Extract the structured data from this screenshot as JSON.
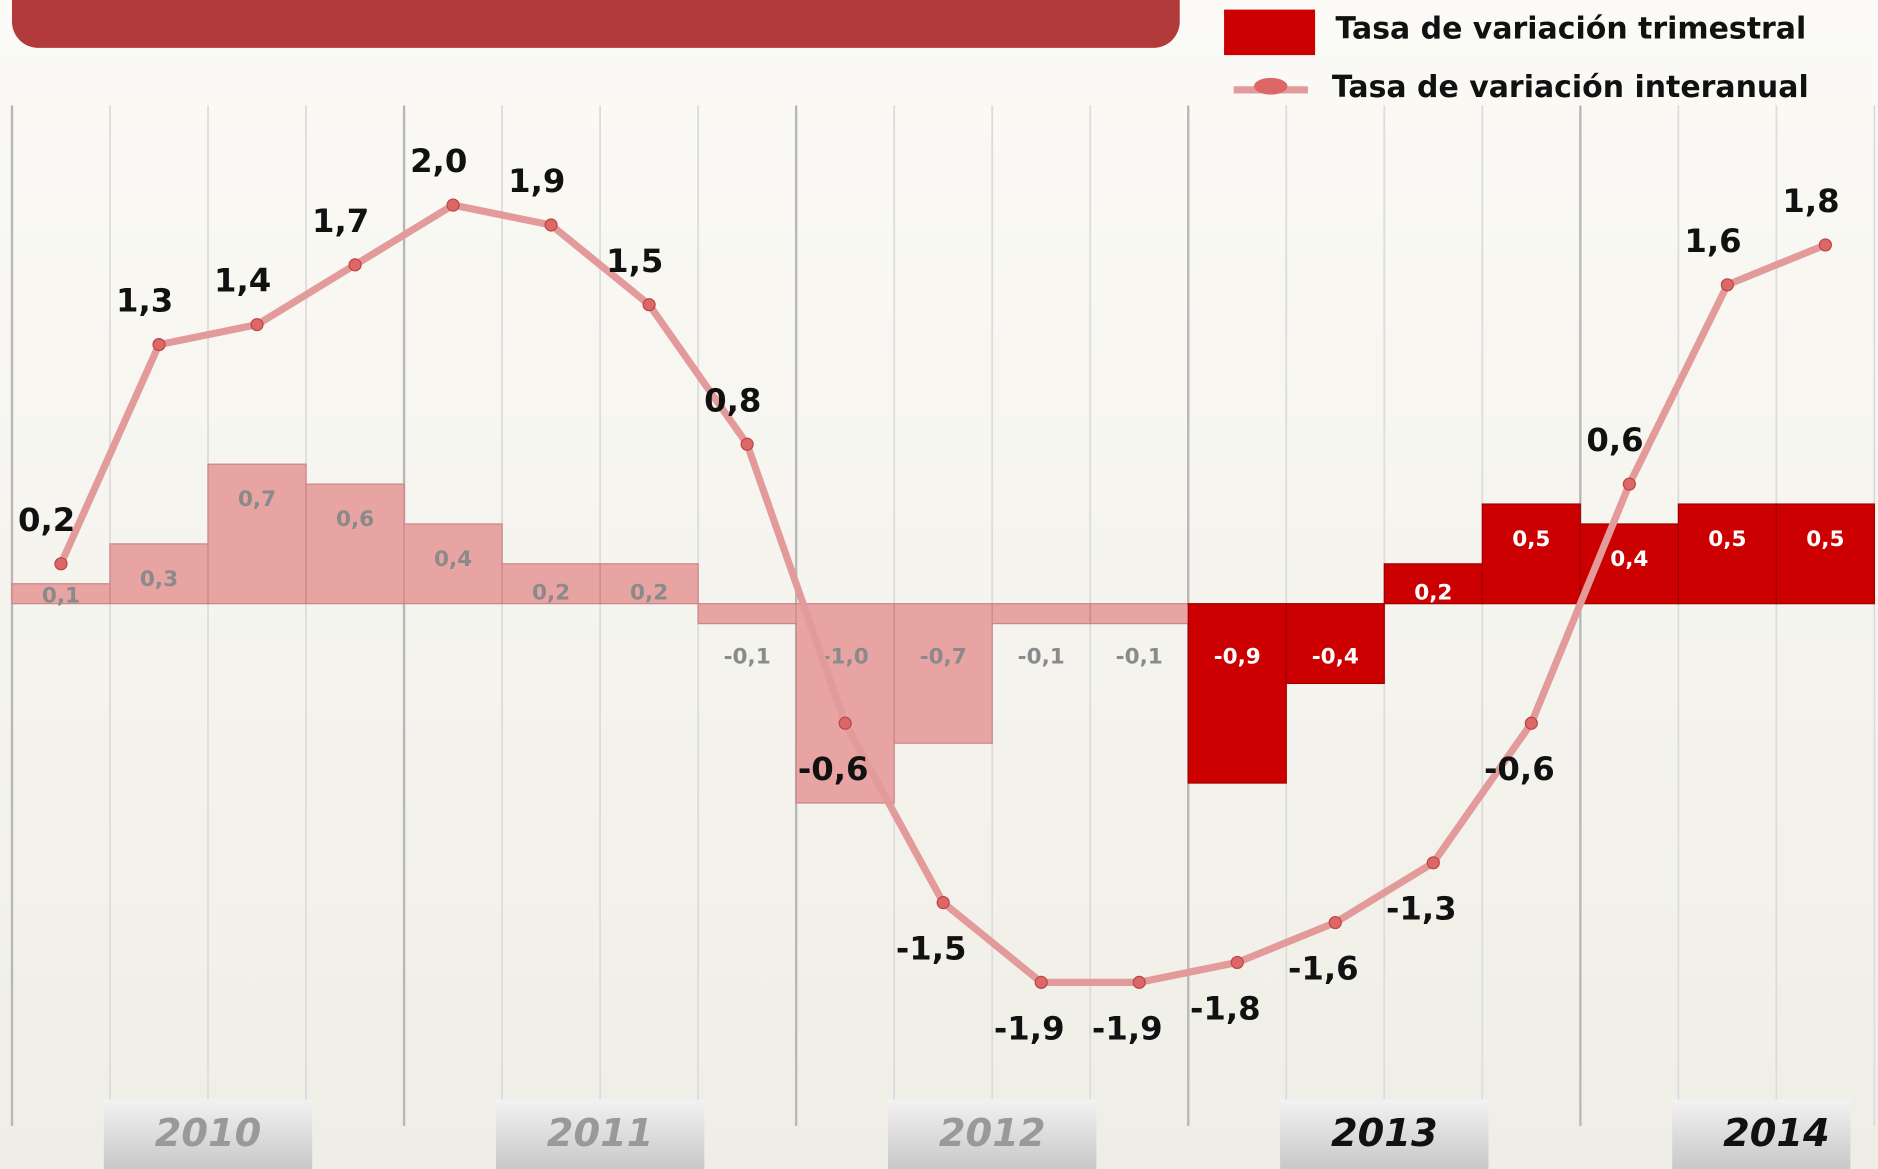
{
  "chart_data": {
    "type": "bar-line",
    "series": [
      {
        "name": "Tasa de variación trimestral",
        "type": "bar",
        "color": "#cc0000",
        "colors": [
          "#e8a3a3",
          "#e8a3a3",
          "#e8a3a3",
          "#e8a3a3",
          "#e8a3a3",
          "#e8a3a3",
          "#e8a3a3",
          "#e8a3a3",
          "#e8a3a3",
          "#e8a3a3",
          "#e8a3a3",
          "#e8a3a3",
          "#cc0000",
          "#cc0000",
          "#cc0000",
          "#cc0000",
          "#cc0000",
          "#cc0000",
          "#cc0000"
        ],
        "values": [
          0.1,
          0.3,
          0.7,
          0.6,
          0.4,
          0.2,
          0.2,
          -0.1,
          -1.0,
          -0.7,
          -0.1,
          -0.1,
          -0.9,
          -0.4,
          0.2,
          0.5,
          0.4,
          0.5,
          0.5
        ],
        "value_labels": [
          "0,1",
          "0,3",
          "0,7",
          "0,6",
          "0,4",
          "0,2",
          "0,2",
          "-0,1",
          "-1,0",
          "-0,7",
          "-0,1",
          "-0,1",
          "-0,9",
          "-0,4",
          "0,2",
          "0,5",
          "0,4",
          "0,5",
          "0,5"
        ]
      },
      {
        "name": "Tasa de variación interanual",
        "type": "line",
        "color": "#e39a9a",
        "values": [
          0.2,
          1.3,
          1.4,
          1.7,
          2.0,
          1.9,
          1.5,
          0.8,
          -0.6,
          -1.5,
          -1.9,
          -1.9,
          -1.8,
          -1.6,
          -1.3,
          -0.6,
          0.6,
          1.6,
          1.8
        ],
        "value_labels": [
          "0,2",
          "1,3",
          "1,4",
          "1,7",
          "2,0",
          "1,9",
          "1,5",
          "0,8",
          "-0,6",
          "-1,5",
          "-1,9",
          "-1,9",
          "-1,8",
          "-1,6",
          "-1,3",
          "-0,6",
          "0,6",
          "1,6",
          "1,8"
        ]
      }
    ],
    "years": [
      "2010",
      "2011",
      "2012",
      "2013",
      "2014"
    ],
    "highlight_years": [
      "2013",
      "2014"
    ],
    "ylim": [
      -2.62,
      2.5
    ]
  }
}
